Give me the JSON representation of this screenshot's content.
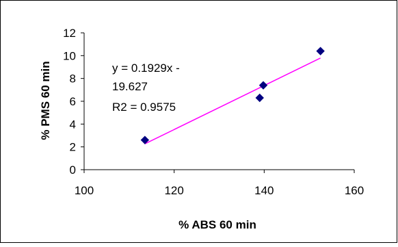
{
  "chart_data": {
    "type": "scatter",
    "xlabel": "% ABS 60 min",
    "ylabel": "% PMS 60 min",
    "xlim": [
      100,
      160
    ],
    "ylim": [
      0,
      12
    ],
    "x_ticks": [
      "100",
      "120",
      "140",
      "160"
    ],
    "y_ticks": [
      "0",
      "2",
      "4",
      "6",
      "8",
      "10",
      "12"
    ],
    "x_tick_values": [
      100,
      120,
      140,
      160
    ],
    "y_tick_values": [
      0,
      2,
      4,
      6,
      8,
      10,
      12
    ],
    "grid": false,
    "series": [
      {
        "points": [
          {
            "x": 113.5,
            "y": 2.6
          },
          {
            "x": 139.0,
            "y": 6.3
          },
          {
            "x": 139.8,
            "y": 7.4
          },
          {
            "x": 152.5,
            "y": 10.4
          }
        ],
        "marker": "diamond",
        "color": "#000080"
      }
    ],
    "trendline": {
      "type": "linear",
      "slope": 0.1929,
      "intercept": -19.627,
      "x_range": [
        113.5,
        152.5
      ],
      "color": "#ff00ff"
    },
    "annotation_lines": [
      "y = 0.1929x -",
      "19.627",
      "R2 = 0.9575"
    ]
  }
}
